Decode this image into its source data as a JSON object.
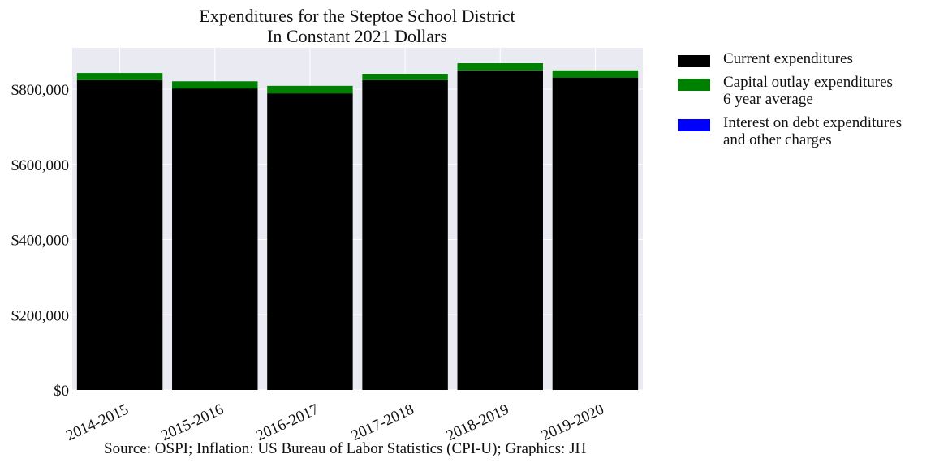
{
  "chart_data": {
    "type": "bar",
    "stacked": true,
    "title": "Expenditures for the Steptoe School District",
    "subtitle": "In Constant 2021 Dollars",
    "xlabel": "",
    "ylabel": "",
    "categories": [
      "2014-2015",
      "2015-2016",
      "2016-2017",
      "2017-2018",
      "2018-2019",
      "2019-2020"
    ],
    "series": [
      {
        "name": "Current expenditures",
        "color": "#000000",
        "values": [
          824000,
          802000,
          789000,
          824000,
          850000,
          831000
        ]
      },
      {
        "name": "Capital outlay expenditures\n6 year average",
        "color": "#008000",
        "values": [
          19000,
          19000,
          20000,
          17000,
          19000,
          19000
        ]
      },
      {
        "name": "Interest on debt expenditures\nand other charges",
        "color": "#0000ff",
        "values": [
          0,
          0,
          0,
          0,
          0,
          0
        ]
      }
    ],
    "ylim": [
      0,
      910000
    ],
    "yticks": [
      0,
      200000,
      400000,
      600000,
      800000
    ],
    "ytick_labels": [
      "$0",
      "$200,000",
      "$400,000",
      "$600,000",
      "$800,000"
    ],
    "grid": true,
    "legend_position": "right-outside",
    "background": "#eaeaf2"
  },
  "source": "Source: OSPI; Inflation: US Bureau of Labor Statistics (CPI-U); Graphics: JH"
}
